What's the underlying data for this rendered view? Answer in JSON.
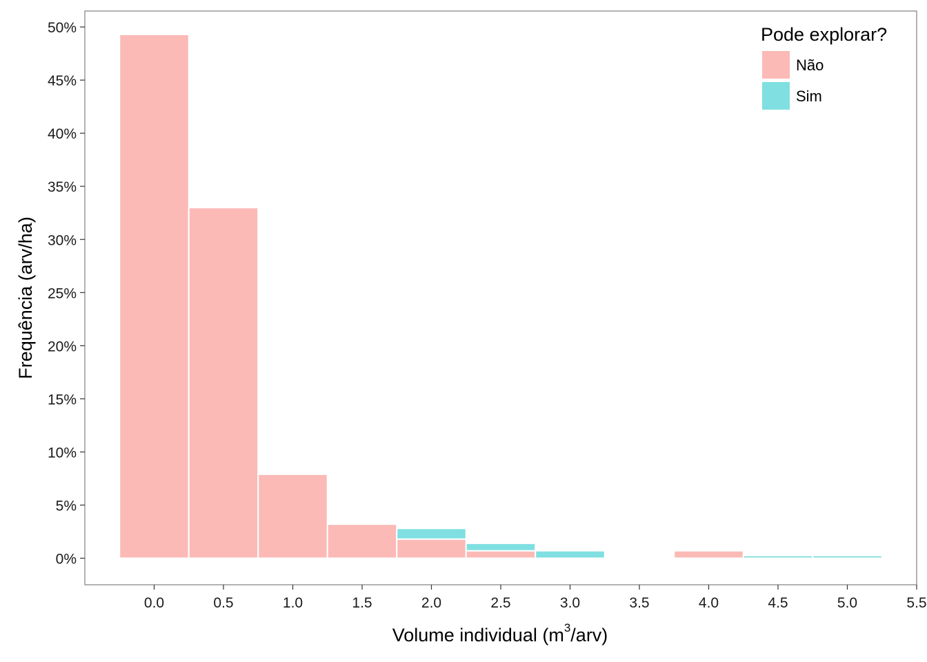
{
  "chart_data": {
    "type": "bar",
    "stacked": true,
    "title": "",
    "xlabel": {
      "prefix": "Volume individual (m",
      "superscript": "3",
      "suffix": "/arv)"
    },
    "ylabel": "Frequência (arv/ha)",
    "xlim": [
      -0.5,
      5.5
    ],
    "ylim": [
      -2.5,
      51.5
    ],
    "x_ticks": [
      0.0,
      0.5,
      1.0,
      1.5,
      2.0,
      2.5,
      3.0,
      3.5,
      4.0,
      4.5,
      5.0,
      5.5
    ],
    "x_tick_labels": [
      "0.0",
      "0.5",
      "1.0",
      "1.5",
      "2.0",
      "2.5",
      "3.0",
      "3.5",
      "4.0",
      "4.5",
      "5.0",
      "5.5"
    ],
    "y_ticks": [
      0,
      5,
      10,
      15,
      20,
      25,
      30,
      35,
      40,
      45,
      50
    ],
    "y_tick_labels": [
      "0%",
      "5%",
      "10%",
      "15%",
      "20%",
      "25%",
      "30%",
      "35%",
      "40%",
      "45%",
      "50%"
    ],
    "bin_width": 0.5,
    "x": [
      0.0,
      0.5,
      1.0,
      1.5,
      2.0,
      2.5,
      3.0,
      3.5,
      4.0,
      4.5,
      5.0
    ],
    "series": [
      {
        "name": "Não",
        "color": "#F8766D",
        "values": [
          49.3,
          33.0,
          7.9,
          3.2,
          1.8,
          0.7,
          0.0,
          0.0,
          0.7,
          0.0,
          0.0
        ]
      },
      {
        "name": "Sim",
        "color": "#00BFC4",
        "values": [
          0.0,
          0.0,
          0.0,
          0.0,
          1.0,
          0.7,
          0.7,
          0.0,
          0.0,
          0.25,
          0.25
        ]
      }
    ],
    "fill_alpha": 0.5,
    "grid": false,
    "legend": {
      "title": "Pode explorar?",
      "position": "top-right"
    }
  }
}
